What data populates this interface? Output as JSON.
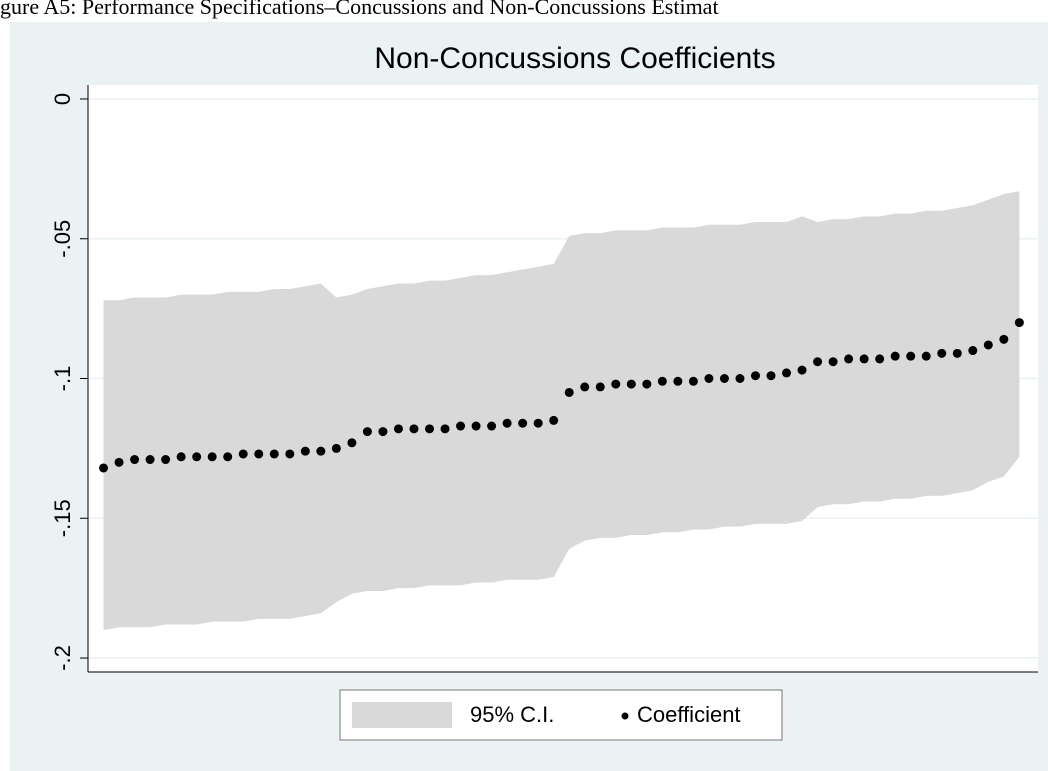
{
  "caption": "gure A5: Performance Specifications–Concussions and Non-Concussions Estimat",
  "chart_data": {
    "type": "ci-scatter",
    "title": "Non-Concussions Coefficients",
    "x": [
      1,
      2,
      3,
      4,
      5,
      6,
      7,
      8,
      9,
      10,
      11,
      12,
      13,
      14,
      15,
      16,
      17,
      18,
      19,
      20,
      21,
      22,
      23,
      24,
      25,
      26,
      27,
      28,
      29,
      30,
      31,
      32,
      33,
      34,
      35,
      36,
      37,
      38,
      39,
      40,
      41,
      42,
      43,
      44,
      45,
      46,
      47,
      48,
      49,
      50,
      51,
      52,
      53,
      54,
      55,
      56,
      57,
      58,
      59,
      60
    ],
    "xlim": [
      0,
      61.2
    ],
    "ylim": [
      -0.205,
      0.005
    ],
    "yticks": [
      0,
      {
        "value": -0.05,
        "label": "-.05"
      },
      {
        "value": -0.1,
        "label": "-.1"
      },
      {
        "value": -0.15,
        "label": "-.15"
      },
      {
        "value": -0.2,
        "label": "-.2"
      }
    ],
    "grid": true,
    "legend": "bottom",
    "band": {
      "name": "95% C.I.",
      "color": "#d9d9d9",
      "upper": [
        -0.072,
        -0.072,
        -0.071,
        -0.071,
        -0.071,
        -0.07,
        -0.07,
        -0.07,
        -0.069,
        -0.069,
        -0.069,
        -0.068,
        -0.068,
        -0.067,
        -0.066,
        -0.071,
        -0.07,
        -0.068,
        -0.067,
        -0.066,
        -0.066,
        -0.065,
        -0.065,
        -0.064,
        -0.063,
        -0.063,
        -0.062,
        -0.061,
        -0.06,
        -0.059,
        -0.049,
        -0.048,
        -0.048,
        -0.047,
        -0.047,
        -0.047,
        -0.046,
        -0.046,
        -0.046,
        -0.045,
        -0.045,
        -0.045,
        -0.044,
        -0.044,
        -0.044,
        -0.042,
        -0.044,
        -0.043,
        -0.043,
        -0.042,
        -0.042,
        -0.041,
        -0.041,
        -0.04,
        -0.04,
        -0.039,
        -0.038,
        -0.036,
        -0.034,
        -0.033
      ],
      "lower": [
        -0.19,
        -0.189,
        -0.189,
        -0.189,
        -0.188,
        -0.188,
        -0.188,
        -0.187,
        -0.187,
        -0.187,
        -0.186,
        -0.186,
        -0.186,
        -0.185,
        -0.184,
        -0.18,
        -0.177,
        -0.176,
        -0.176,
        -0.175,
        -0.175,
        -0.174,
        -0.174,
        -0.174,
        -0.173,
        -0.173,
        -0.172,
        -0.172,
        -0.172,
        -0.171,
        -0.161,
        -0.158,
        -0.157,
        -0.157,
        -0.156,
        -0.156,
        -0.155,
        -0.155,
        -0.154,
        -0.154,
        -0.153,
        -0.153,
        -0.152,
        -0.152,
        -0.152,
        -0.151,
        -0.146,
        -0.145,
        -0.145,
        -0.144,
        -0.144,
        -0.143,
        -0.143,
        -0.142,
        -0.142,
        -0.141,
        -0.14,
        -0.137,
        -0.135,
        -0.128
      ]
    },
    "series": [
      {
        "name": "Coefficient",
        "color": "#000000",
        "values": [
          -0.132,
          -0.13,
          -0.129,
          -0.129,
          -0.129,
          -0.128,
          -0.128,
          -0.128,
          -0.128,
          -0.127,
          -0.127,
          -0.127,
          -0.127,
          -0.126,
          -0.126,
          -0.125,
          -0.123,
          -0.119,
          -0.119,
          -0.118,
          -0.118,
          -0.118,
          -0.118,
          -0.117,
          -0.117,
          -0.117,
          -0.116,
          -0.116,
          -0.116,
          -0.115,
          -0.105,
          -0.103,
          -0.103,
          -0.102,
          -0.102,
          -0.102,
          -0.101,
          -0.101,
          -0.101,
          -0.1,
          -0.1,
          -0.1,
          -0.099,
          -0.099,
          -0.098,
          -0.097,
          -0.094,
          -0.094,
          -0.093,
          -0.093,
          -0.093,
          -0.092,
          -0.092,
          -0.092,
          -0.091,
          -0.091,
          -0.09,
          -0.088,
          -0.086,
          -0.08
        ]
      }
    ]
  }
}
